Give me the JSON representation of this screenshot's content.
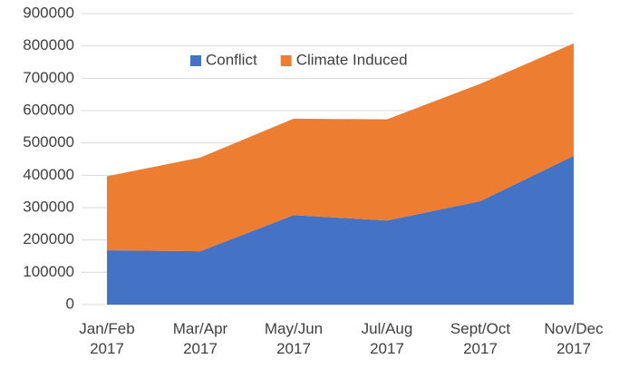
{
  "chart_data": {
    "type": "stacked_area",
    "categories": [
      "Jan/Feb 2017",
      "Mar/Apr 2017",
      "May/Jun 2017",
      "Jul/Aug 2017",
      "Sept/Oct 2017",
      "Nov/Dec 2017"
    ],
    "series": [
      {
        "name": "Conflict",
        "color": "#4472c4",
        "values": [
          168000,
          165000,
          277000,
          260000,
          320000,
          460000
        ]
      },
      {
        "name": "Climate Induced",
        "color": "#ed7d31",
        "values": [
          229000,
          290000,
          298000,
          313000,
          363000,
          348000
        ]
      }
    ],
    "ylim": [
      0,
      900000
    ],
    "yticks": [
      0,
      100000,
      200000,
      300000,
      400000,
      500000,
      600000,
      700000,
      800000,
      900000
    ],
    "grid": true,
    "legend": "top"
  }
}
